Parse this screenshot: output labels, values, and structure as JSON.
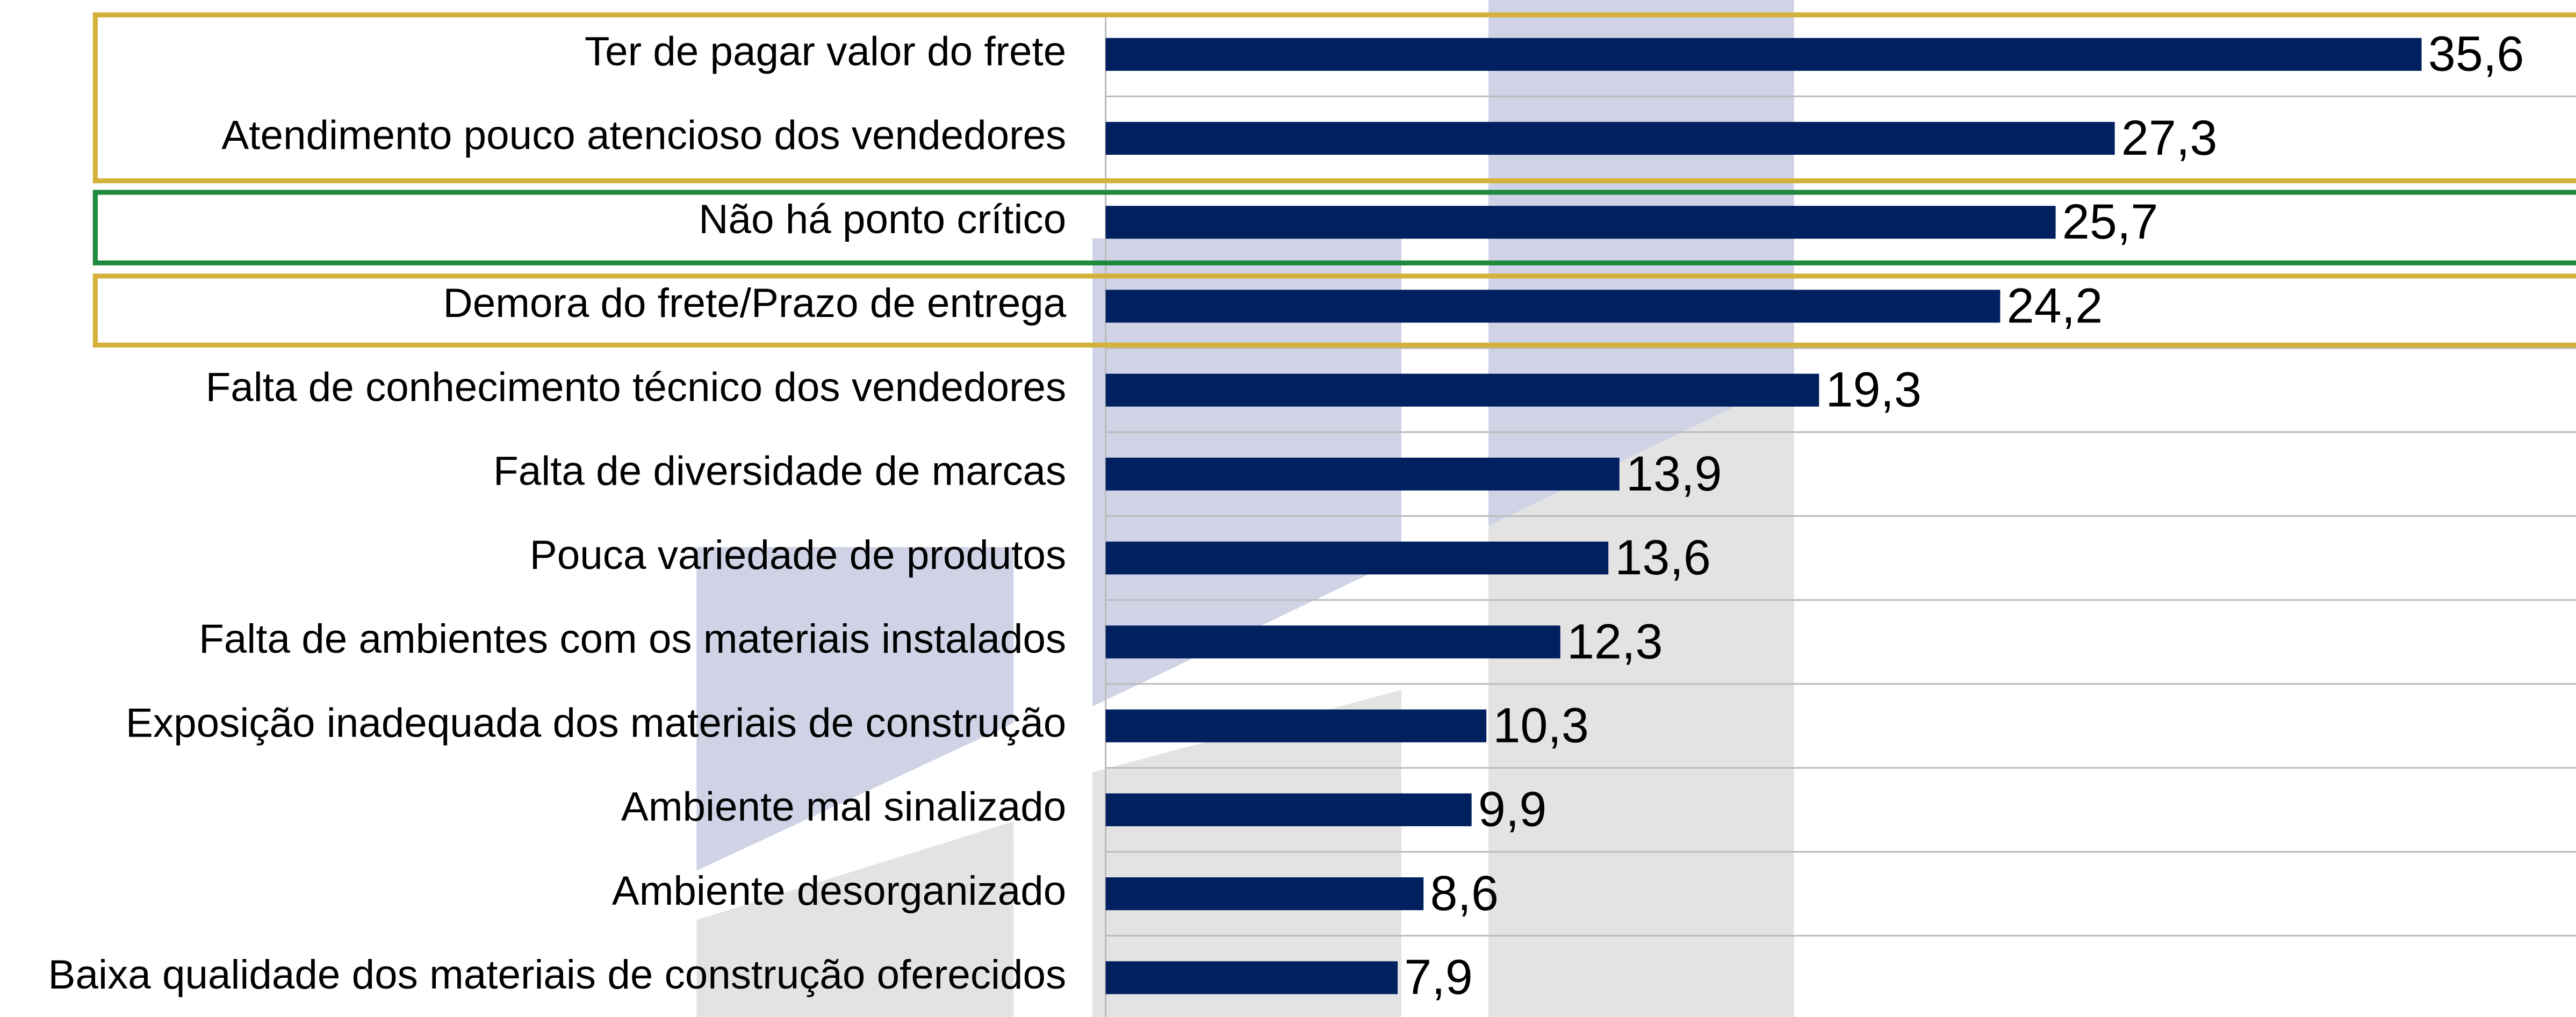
{
  "chart_data": {
    "type": "bar",
    "orientation": "horizontal",
    "categories": [
      "Ter de pagar valor do frete",
      "Atendimento pouco atencioso dos vendedores",
      "Não há ponto crítico",
      "Demora do frete/Prazo de entrega",
      "Falta de conhecimento técnico dos vendedores",
      "Falta de diversidade de marcas",
      "Pouca variedade de produtos",
      "Falta de ambientes com os materiais instalados",
      "Exposição inadequada dos materiais de construção",
      "Ambiente mal sinalizado",
      "Ambiente desorganizado",
      "Baixa qualidade dos materiais de construção oferecidos"
    ],
    "values": [
      35.6,
      27.3,
      25.7,
      24.2,
      19.3,
      13.9,
      13.6,
      12.3,
      10.3,
      9.9,
      8.6,
      7.9
    ],
    "value_labels": [
      "35,6",
      "27,3",
      "25,7",
      "24,2",
      "19,3",
      "13,9",
      "13,6",
      "12,3",
      "10,3",
      "9,9",
      "8,6",
      "7,9"
    ],
    "color": "#002060",
    "xlim": [
      0,
      40
    ],
    "grid": true
  }
}
